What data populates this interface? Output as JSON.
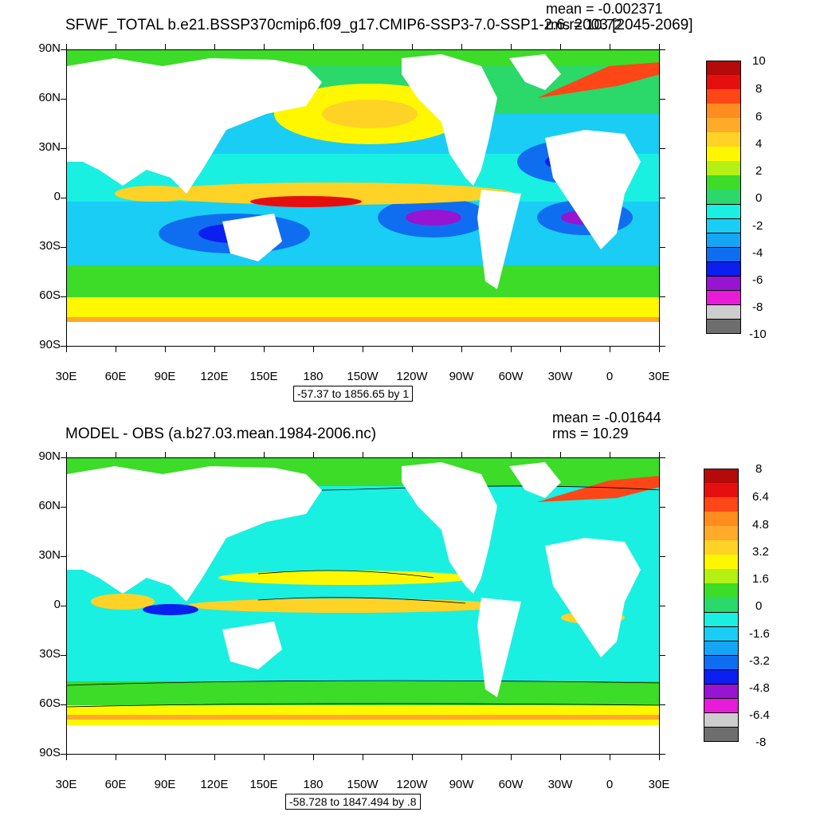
{
  "panels": [
    {
      "title": "SFWF_TOTAL b.e21.BSSP370cmip6.f09_g17.CMIP6-SSP3-7.0-SSP1-2.6.r2003 [2045-2069]",
      "mean": "mean = -0.002371",
      "rms": "rms = 10.72",
      "range_label": "-57.37 to 1856.65 by 1",
      "colorbar_labels": [
        "10",
        "8",
        "6",
        "4",
        "2",
        "0",
        "-2",
        "-4",
        "-6",
        "-8",
        "-10"
      ]
    },
    {
      "title": "MODEL - OBS (a.b27.03.mean.1984-2006.nc)",
      "mean": "mean = -0.01644",
      "rms": "rms = 10.29",
      "range_label": "-58.728 to 1847.494 by .8",
      "colorbar_labels": [
        "8",
        "6.4",
        "4.8",
        "3.2",
        "1.6",
        "0",
        "-1.6",
        "-3.2",
        "-4.8",
        "-6.4",
        "-8"
      ]
    }
  ],
  "lat_labels": [
    "90N",
    "60N",
    "30N",
    "0",
    "30S",
    "60S",
    "90S"
  ],
  "lon_labels": [
    "30E",
    "60E",
    "90E",
    "120E",
    "150E",
    "180",
    "150W",
    "120W",
    "90W",
    "60W",
    "30W",
    "0",
    "30E"
  ],
  "colorbar_colors": [
    "#6e6e6e",
    "#cdcdcd",
    "#e81bd8",
    "#9614d2",
    "#0a1ff0",
    "#0f6ef0",
    "#15a5f5",
    "#19cdf5",
    "#19f0e1",
    "#2bd86a",
    "#3cdc28",
    "#b4f014",
    "#fff700",
    "#ffd226",
    "#ffaa28",
    "#ff8c1e",
    "#ff4617",
    "#e60f0f",
    "#b40a0a"
  ]
}
